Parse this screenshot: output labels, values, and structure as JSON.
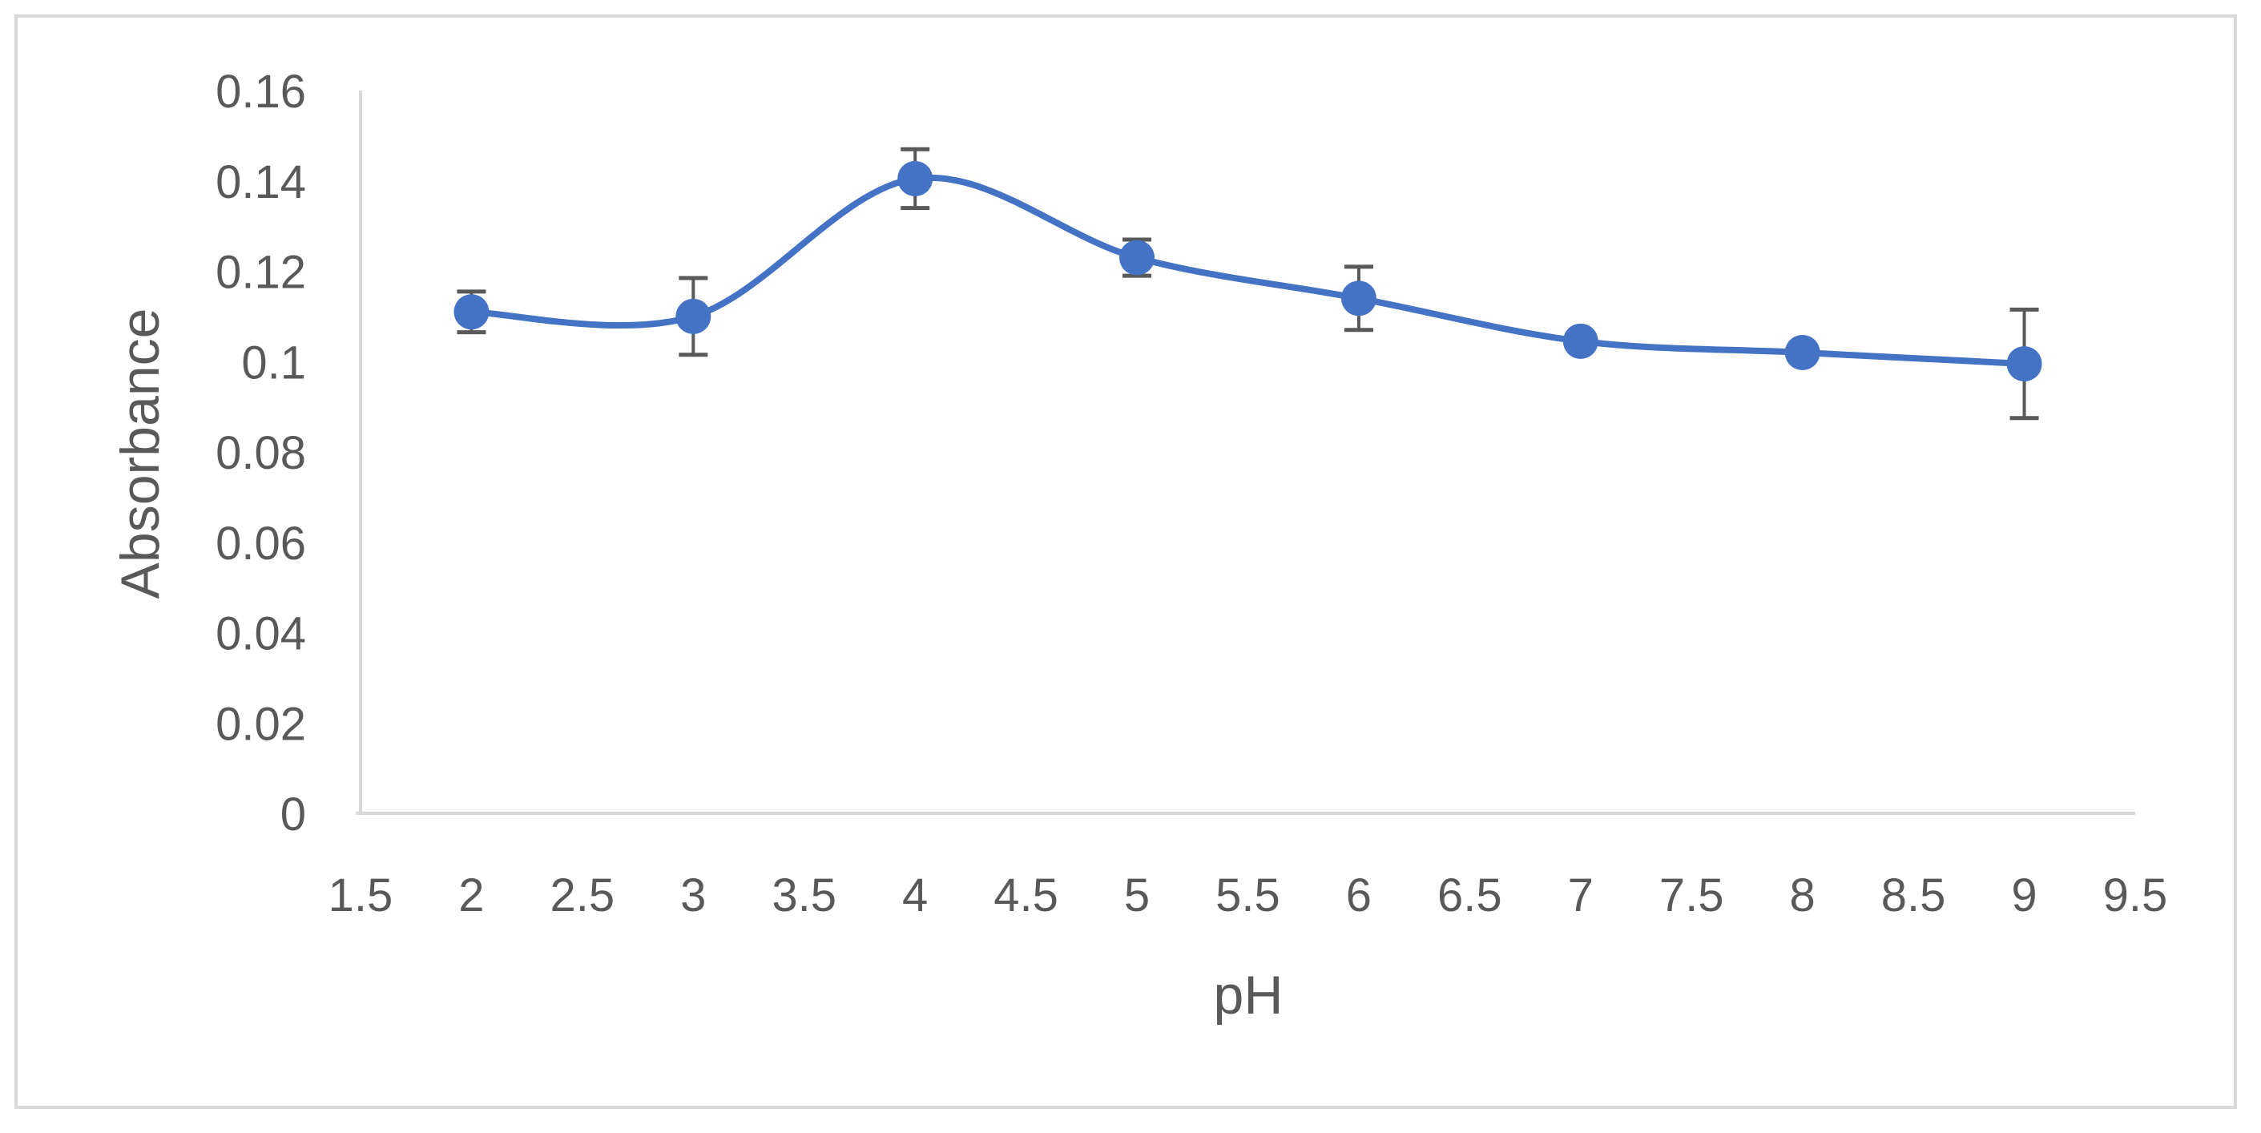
{
  "chart_data": {
    "type": "line",
    "title": "",
    "xlabel": "pH",
    "ylabel": "Absorbance",
    "xlim": [
      1.5,
      9.5
    ],
    "ylim": [
      0,
      0.16
    ],
    "x_ticks": [
      "1.5",
      "2",
      "2.5",
      "3",
      "3.5",
      "4",
      "4.5",
      "5",
      "5.5",
      "6",
      "6.5",
      "7",
      "7.5",
      "8",
      "8.5",
      "9",
      "9.5"
    ],
    "y_ticks": [
      "0",
      "0.02",
      "0.04",
      "0.06",
      "0.08",
      "0.1",
      "0.12",
      "0.14",
      "0.16"
    ],
    "grid": false,
    "legend": "none",
    "smooth": true,
    "series": [
      {
        "x": [
          2,
          3,
          4,
          5,
          6,
          7,
          8,
          9
        ],
        "y": [
          0.111,
          0.11,
          0.1405,
          0.123,
          0.114,
          0.1045,
          0.102,
          0.0995
        ],
        "error": [
          0.0045,
          0.0085,
          0.0065,
          0.004,
          0.007,
          0.001,
          0.001,
          0.012
        ],
        "color": "#4472c4"
      }
    ],
    "axis_color": "#d9d9d9",
    "errorbar_color": "#595959"
  }
}
